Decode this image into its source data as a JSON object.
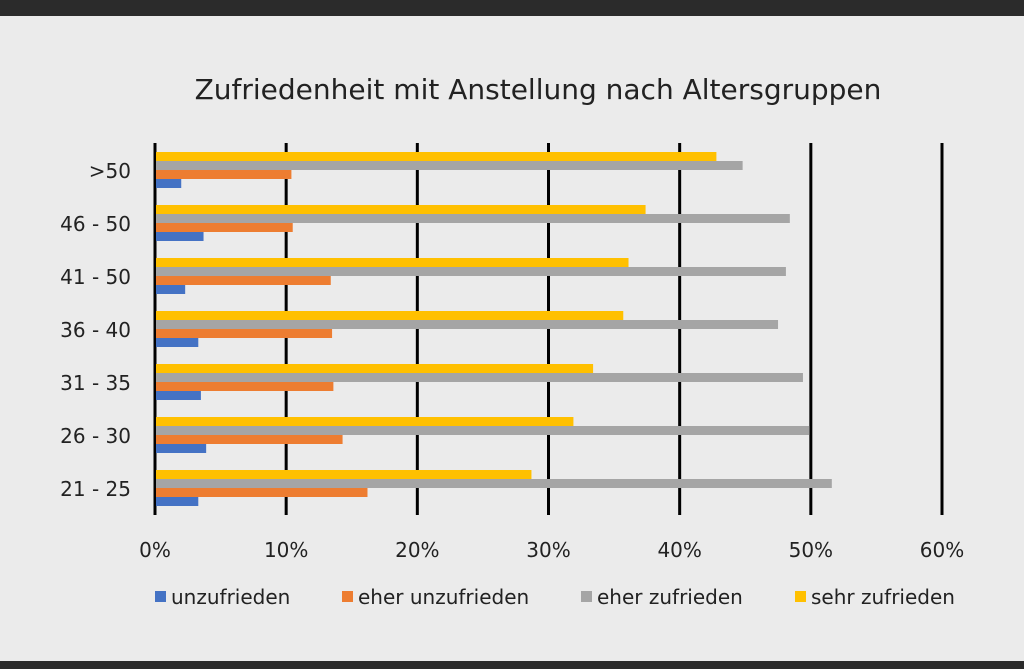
{
  "chart_data": {
    "type": "bar",
    "orientation": "horizontal",
    "title": "Zufriedenheit mit Anstellung nach Altersgruppen",
    "categories": [
      "21 - 25",
      "26 - 30",
      "31 - 35",
      "36 - 40",
      "41 - 50",
      "46 - 50",
      ">50"
    ],
    "series": [
      {
        "name": "unzufrieden",
        "color": "#4472C4",
        "values": [
          3.3,
          3.9,
          3.5,
          3.3,
          2.3,
          3.7,
          2.0
        ]
      },
      {
        "name": "eher unzufrieden",
        "color": "#ED7D31",
        "values": [
          16.2,
          14.3,
          13.6,
          13.5,
          13.4,
          10.5,
          10.4
        ]
      },
      {
        "name": "eher zufrieden",
        "color": "#A5A5A5",
        "values": [
          51.6,
          49.9,
          49.4,
          47.5,
          48.1,
          48.4,
          44.8
        ]
      },
      {
        "name": "sehr zufrieden",
        "color": "#FFC000",
        "values": [
          28.7,
          31.9,
          33.4,
          35.7,
          36.1,
          37.4,
          42.8
        ]
      }
    ],
    "xlim": [
      0,
      60
    ],
    "xticks": [
      "0%",
      "10%",
      "20%",
      "30%",
      "40%",
      "50%",
      "60%"
    ],
    "grid": true,
    "legend": "bottom"
  }
}
